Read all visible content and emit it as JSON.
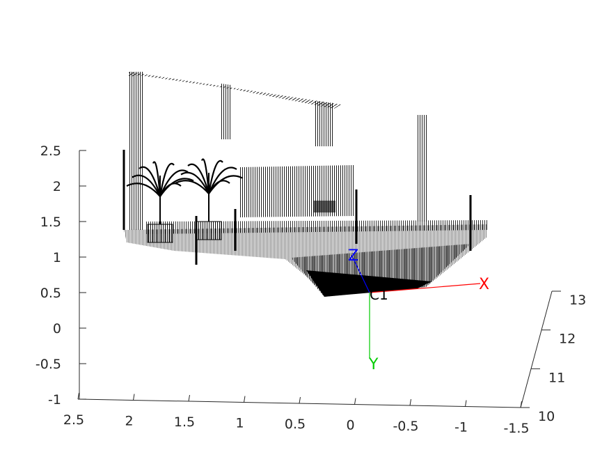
{
  "chart_data": {
    "type": "scatter",
    "subtype": "3d-point-cloud",
    "title": "",
    "grid": false,
    "axes": {
      "x": {
        "ticks": [
          2.5,
          2,
          1.5,
          1,
          0.5,
          0,
          -0.5,
          -1,
          -1.5
        ],
        "tick_labels": [
          "2.5",
          "2",
          "1.5",
          "1",
          "0.5",
          "0",
          "-0.5",
          "-1",
          "-1.5"
        ],
        "range": [
          -1.5,
          2.5
        ],
        "direction": "reversed",
        "label": ""
      },
      "y": {
        "ticks": [
          -1,
          -0.5,
          0,
          0.5,
          1,
          1.5,
          2,
          2.5
        ],
        "tick_labels": [
          "-1",
          "-0.5",
          "0",
          "0.5",
          "1",
          "1.5",
          "2",
          "2.5"
        ],
        "range": [
          -1,
          2.5
        ],
        "label": ""
      },
      "z": {
        "ticks": [
          10,
          11,
          12,
          13
        ],
        "tick_labels": [
          "10",
          "11",
          "12",
          "13"
        ],
        "range": [
          10,
          13
        ],
        "label": ""
      }
    },
    "camera_marker": {
      "label": "C1",
      "axes": [
        {
          "label": "X",
          "color": "#ff0000"
        },
        {
          "label": "Y",
          "color": "#00cc00"
        },
        {
          "label": "Z",
          "color": "#0000ff"
        }
      ]
    },
    "point_color": "#000000"
  }
}
